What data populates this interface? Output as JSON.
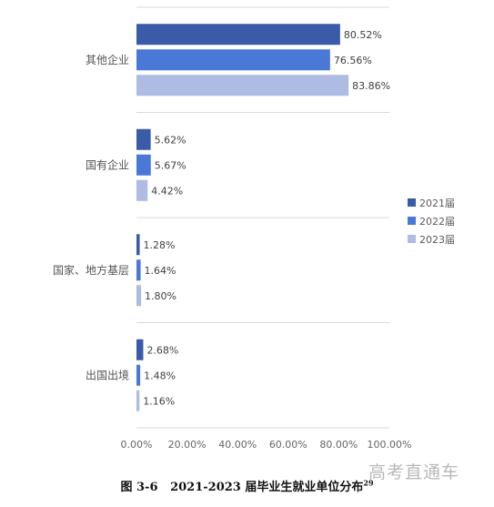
{
  "chart_data": {
    "type": "bar",
    "orientation": "horizontal",
    "categories": [
      "其他企业",
      "国有企业",
      "国家、地方基层",
      "出国出境"
    ],
    "series": [
      {
        "name": "2021届",
        "color": "#3a5ba7",
        "values": [
          80.52,
          5.62,
          1.28,
          2.68
        ],
        "labels": [
          "80.52%",
          "5.62%",
          "1.28%",
          "2.68%"
        ]
      },
      {
        "name": "2022届",
        "color": "#4a78d6",
        "values": [
          76.56,
          5.67,
          1.64,
          1.48
        ],
        "labels": [
          "76.56%",
          "5.67%",
          "1.64%",
          "1.48%"
        ]
      },
      {
        "name": "2023届",
        "color": "#aebbe2",
        "values": [
          83.86,
          4.42,
          1.8,
          1.16
        ],
        "labels": [
          "83.86%",
          "4.42%",
          "1.80%",
          "1.16%"
        ]
      }
    ],
    "xlim": [
      0,
      100
    ],
    "xticks": [
      "0.00%",
      "20.00%",
      "40.00%",
      "60.00%",
      "80.00%",
      "100.00%"
    ],
    "grid": true,
    "legend": "right"
  },
  "caption": {
    "prefix": "图 3-6",
    "title": "2021-2023 届毕业生就业单位分布",
    "footnote": "29"
  },
  "watermark": "高考直通车"
}
